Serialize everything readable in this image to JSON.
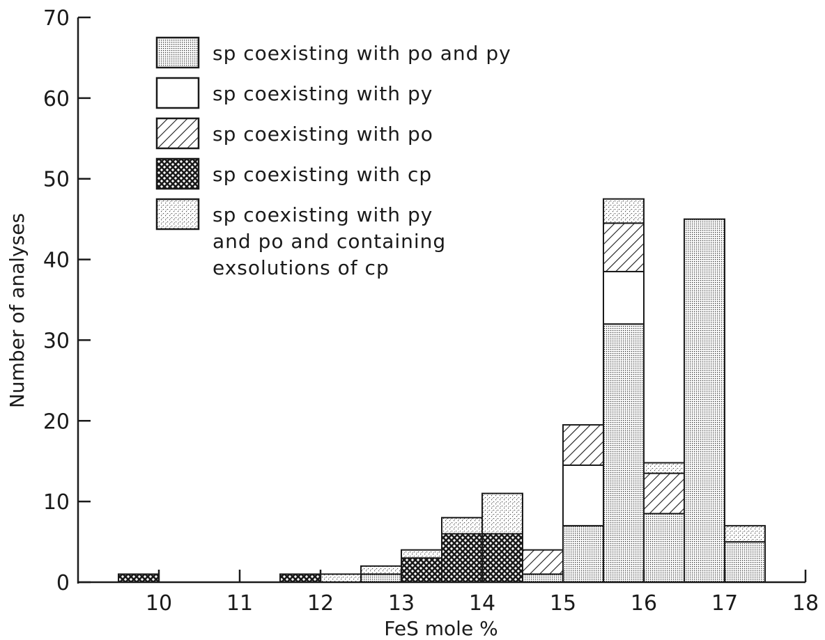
{
  "chart_data": {
    "type": "bar",
    "stacked": true,
    "xlabel": "FeS mole %",
    "ylabel": "Number of analyses",
    "xlim": [
      9,
      18
    ],
    "ylim": [
      0,
      70
    ],
    "x_ticks": [
      "10",
      "11",
      "12",
      "13",
      "14",
      "15",
      "16",
      "17",
      "18"
    ],
    "y_ticks": [
      "0",
      "10",
      "20",
      "30",
      "40",
      "50",
      "60",
      "70"
    ],
    "bin_width": 0.5,
    "legend_placement": "top-left",
    "series": [
      {
        "key": "py_po_cp",
        "pattern": "dense-dots"
      },
      {
        "key": "py",
        "pattern": "blank"
      },
      {
        "key": "po",
        "pattern": "diagonal"
      },
      {
        "key": "cp",
        "pattern": "crosshatch"
      },
      {
        "key": "py_po_exsol",
        "pattern": "sparse-dots"
      }
    ],
    "legend": [
      {
        "key": "py_po_cp",
        "lines": [
          "sp coexisting with po and py"
        ]
      },
      {
        "key": "py",
        "lines": [
          "sp coexisting with py"
        ]
      },
      {
        "key": "po",
        "lines": [
          "sp coexisting with po"
        ]
      },
      {
        "key": "cp",
        "lines": [
          "sp coexisting with cp"
        ]
      },
      {
        "key": "py_po_exsol",
        "lines": [
          "sp coexisting with py",
          "and po and containing",
          "exsolutions of cp"
        ]
      }
    ],
    "bins": [
      {
        "bin_start": 9.5,
        "segments": [
          {
            "series": "cp",
            "value": 1
          }
        ]
      },
      {
        "bin_start": 11.5,
        "segments": [
          {
            "series": "cp",
            "value": 1
          }
        ]
      },
      {
        "bin_start": 12.0,
        "segments": [
          {
            "series": "py_po_exsol",
            "value": 1
          }
        ]
      },
      {
        "bin_start": 12.5,
        "segments": [
          {
            "series": "py_po_cp",
            "value": 1
          },
          {
            "series": "py_po_exsol",
            "value": 1
          }
        ]
      },
      {
        "bin_start": 13.0,
        "segments": [
          {
            "series": "cp",
            "value": 3
          },
          {
            "series": "py_po_exsol",
            "value": 1
          }
        ]
      },
      {
        "bin_start": 13.5,
        "segments": [
          {
            "series": "cp",
            "value": 6
          },
          {
            "series": "py_po_exsol",
            "value": 2
          }
        ]
      },
      {
        "bin_start": 14.0,
        "segments": [
          {
            "series": "cp",
            "value": 6
          },
          {
            "series": "py_po_exsol",
            "value": 5
          }
        ]
      },
      {
        "bin_start": 14.5,
        "segments": [
          {
            "series": "py_po_cp",
            "value": 1
          },
          {
            "series": "po",
            "value": 3
          }
        ]
      },
      {
        "bin_start": 15.0,
        "segments": [
          {
            "series": "py_po_cp",
            "value": 7
          },
          {
            "series": "py",
            "value": 7.5
          },
          {
            "series": "po",
            "value": 5
          }
        ]
      },
      {
        "bin_start": 15.5,
        "segments": [
          {
            "series": "py_po_cp",
            "value": 32
          },
          {
            "series": "py",
            "value": 6.5
          },
          {
            "series": "po",
            "value": 6
          },
          {
            "series": "py_po_exsol",
            "value": 3
          }
        ]
      },
      {
        "bin_start": 16.0,
        "segments": [
          {
            "series": "py_po_cp",
            "value": 8.5
          },
          {
            "series": "po",
            "value": 5
          },
          {
            "series": "py_po_exsol",
            "value": 1.3
          }
        ]
      },
      {
        "bin_start": 16.5,
        "segments": [
          {
            "series": "py_po_cp",
            "value": 45
          }
        ]
      },
      {
        "bin_start": 17.0,
        "segments": [
          {
            "series": "py_po_cp",
            "value": 5
          },
          {
            "series": "py_po_exsol",
            "value": 2
          }
        ]
      }
    ]
  }
}
